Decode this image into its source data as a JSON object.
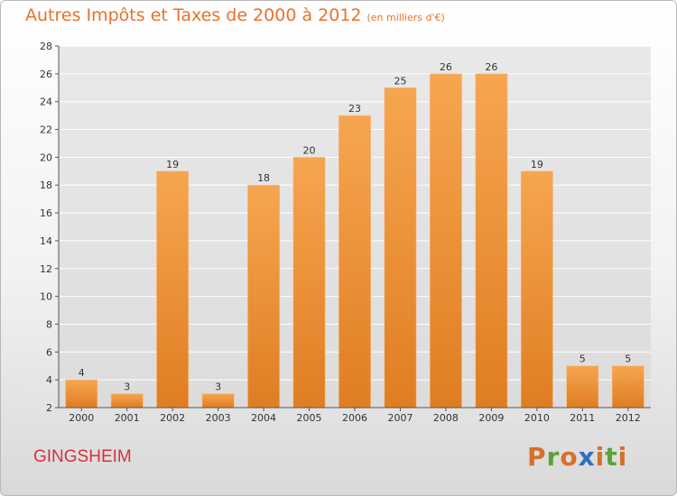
{
  "header": {
    "title": "Autres Impôts et Taxes de 2000 à 2012",
    "unit": "(en milliers d'€)"
  },
  "footer": {
    "commune": "GINGSHEIM",
    "brand": "Proxiti"
  },
  "colors": {
    "bar_light": "#f6a650",
    "bar_dark": "#e07d22",
    "title": "#e8722b",
    "commune": "#d2333f",
    "axis_label": "#333333",
    "grid": "#ffffff",
    "logo_letters": [
      "#d6702a",
      "#5aa23a",
      "#d6702a",
      "#2f6fc0",
      "#d6702a",
      "#5aa23a",
      "#d6702a"
    ]
  },
  "chart_data": {
    "type": "bar",
    "title": "Autres Impôts et Taxes de 2000 à 2012",
    "subtitle": "(en milliers d'€)",
    "xlabel": "",
    "ylabel": "",
    "categories": [
      "2000",
      "2001",
      "2002",
      "2003",
      "2004",
      "2005",
      "2006",
      "2007",
      "2008",
      "2009",
      "2010",
      "2011",
      "2012"
    ],
    "values": [
      4,
      3,
      19,
      3,
      18,
      20,
      23,
      25,
      26,
      26,
      19,
      5,
      5
    ],
    "ylim": [
      2,
      28
    ],
    "yticks": [
      2,
      4,
      6,
      8,
      10,
      12,
      14,
      16,
      18,
      20,
      22,
      24,
      26,
      28
    ],
    "grid": true,
    "data_labels": true
  }
}
